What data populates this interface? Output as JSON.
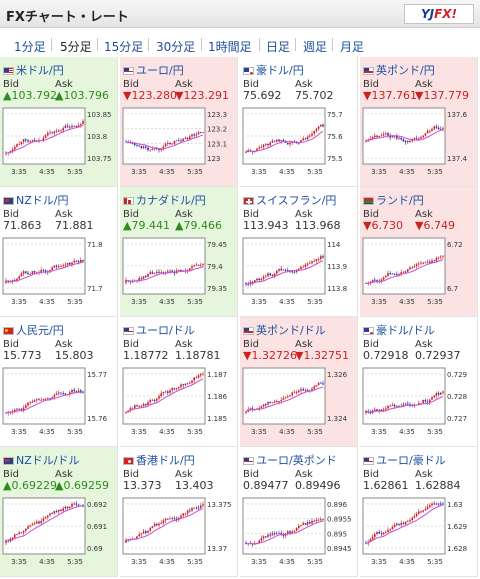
{
  "header": {
    "title": "FXチャート・レート",
    "logo": {
      "text_a": "YJ",
      "text_b": "FX!"
    }
  },
  "tabs": [
    {
      "label": "1分足",
      "active": false
    },
    {
      "label": "5分足",
      "active": true
    },
    {
      "label": "15分足",
      "active": false
    },
    {
      "label": "30分足",
      "active": false
    },
    {
      "label": "1時間足",
      "active": false
    },
    {
      "label": "日足",
      "active": false
    },
    {
      "label": "週足",
      "active": false
    },
    {
      "label": "月足",
      "active": false
    }
  ],
  "colors": {
    "up_bg": "#e5f6dd",
    "down_bg": "#fbe3e3",
    "up_text": "#2e8b1e",
    "down_text": "#cc2121",
    "link": "#1d4fa0"
  },
  "pairs": [
    {
      "name": "米ドル/円",
      "flag": "us-flag",
      "trend": "up",
      "bid": "▲103.792",
      "ask": "▲103.796",
      "yticks": [
        "103.85",
        "103.8",
        "103.75"
      ],
      "xticks": [
        "3:35",
        "4:35",
        "5:35"
      ]
    },
    {
      "name": "ユーロ/円",
      "flag": "eu-flag",
      "trend": "down",
      "bid": "▼123.280",
      "ask": "▼123.291",
      "yticks": [
        "123.3",
        "123.2",
        "123.1",
        "123"
      ],
      "xticks": [
        "3:35",
        "4:35",
        "5:35"
      ]
    },
    {
      "name": "豪ドル/円",
      "flag": "au-flag",
      "trend": "none",
      "bid": "75.692",
      "ask": "75.702",
      "yticks": [
        "75.7",
        "75.6",
        "75.5"
      ],
      "xticks": [
        "3:35",
        "4:35",
        "5:35"
      ]
    },
    {
      "name": "英ポンド/円",
      "flag": "gb-flag",
      "trend": "down",
      "bid": "▼137.761",
      "ask": "▼137.779",
      "yticks": [
        "137.6",
        "137.4"
      ],
      "xticks": [
        "3:35",
        "4:35",
        "5:35"
      ]
    },
    {
      "name": "NZドル/円",
      "flag": "nz-flag",
      "trend": "none",
      "bid": "71.863",
      "ask": "71.881",
      "yticks": [
        "71.8",
        "71.7"
      ],
      "xticks": [
        "3:35",
        "4:35",
        "5:35"
      ]
    },
    {
      "name": "カナダドル/円",
      "flag": "ca-flag",
      "trend": "up",
      "bid": "▲79.441",
      "ask": "▲79.466",
      "yticks": [
        "79.45",
        "79.4",
        "79.35"
      ],
      "xticks": [
        "3:35",
        "4:35",
        "5:35"
      ]
    },
    {
      "name": "スイスフラン/円",
      "flag": "ch-flag",
      "trend": "none",
      "bid": "113.943",
      "ask": "113.968",
      "yticks": [
        "114",
        "113.9",
        "113.8"
      ],
      "xticks": [
        "3:35",
        "4:35",
        "5:35"
      ]
    },
    {
      "name": "ランド/円",
      "flag": "za-flag",
      "trend": "down",
      "bid": "▼6.730",
      "ask": "▼6.749",
      "yticks": [
        "6.72",
        "6.7"
      ],
      "xticks": [
        "3:35",
        "4:35",
        "5:35"
      ]
    },
    {
      "name": "人民元/円",
      "flag": "cn-flag",
      "trend": "none",
      "bid": "15.773",
      "ask": "15.803",
      "yticks": [
        "15.77",
        "15.76"
      ],
      "xticks": [
        "3:35",
        "4:35",
        "5:35"
      ]
    },
    {
      "name": "ユーロ/ドル",
      "flag": "eu-flag",
      "trend": "none",
      "bid": "1.18772",
      "ask": "1.18781",
      "yticks": [
        "1.187",
        "1.186",
        "1.185"
      ],
      "xticks": [
        "3:35",
        "4:35",
        "5:35"
      ]
    },
    {
      "name": "英ポンド/ドル",
      "flag": "gb-flag",
      "trend": "down",
      "bid": "▼1.32726",
      "ask": "▼1.32751",
      "yticks": [
        "1.326",
        "1.324"
      ],
      "xticks": [
        "3:35",
        "4:35",
        "5:35"
      ]
    },
    {
      "name": "豪ドル/ドル",
      "flag": "au-flag",
      "trend": "none",
      "bid": "0.72918",
      "ask": "0.72937",
      "yticks": [
        "0.729",
        "0.728",
        "0.727"
      ],
      "xticks": [
        "3:35",
        "4:35",
        "5:35"
      ]
    },
    {
      "name": "NZドル/ドル",
      "flag": "nz-flag",
      "trend": "up",
      "bid": "▲0.69229",
      "ask": "▲0.69259",
      "yticks": [
        "0.692",
        "0.691",
        "0.69"
      ],
      "xticks": [
        "3:35",
        "4:35",
        "5:35"
      ]
    },
    {
      "name": "香港ドル/円",
      "flag": "hk-flag",
      "trend": "none",
      "bid": "13.373",
      "ask": "13.403",
      "yticks": [
        "13.375",
        "13.37"
      ],
      "xticks": [
        "3:35",
        "4:35",
        "5:35"
      ]
    },
    {
      "name": "ユーロ/英ポンド",
      "flag": "eu-flag",
      "trend": "none",
      "bid": "0.89477",
      "ask": "0.89496",
      "yticks": [
        "0.896",
        "0.8955",
        "0.895",
        "0.8945"
      ],
      "xticks": [
        "3:35",
        "4:35",
        "5:35"
      ]
    },
    {
      "name": "ユーロ/豪ドル",
      "flag": "eu-flag",
      "trend": "none",
      "bid": "1.62861",
      "ask": "1.62884",
      "yticks": [
        "1.63",
        "1.629",
        "1.628"
      ],
      "xticks": [
        "3:35",
        "4:35",
        "5:35"
      ]
    }
  ],
  "labels": {
    "bid": "Bid",
    "ask": "Ask"
  }
}
